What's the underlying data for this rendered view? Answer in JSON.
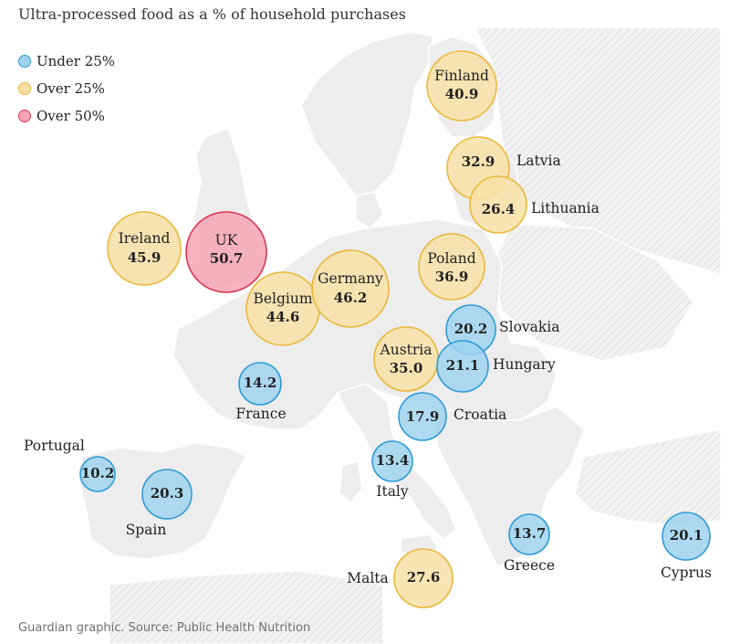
{
  "title": "Ultra-processed food as a % of household purchases",
  "source": "Guardian graphic. Source: Public Health Nutrition",
  "colors": {
    "under25": {
      "fill": "#9fd4ee",
      "stroke": "#2f9bd6"
    },
    "over25": {
      "fill": "#f7e0a6",
      "stroke": "#e9b83a"
    },
    "over50": {
      "fill": "#f4a6b4",
      "stroke": "#dc3652"
    },
    "land": "#ededed",
    "border": "#ffffff"
  },
  "legend": [
    {
      "key": "under25",
      "label": "Under 25%"
    },
    {
      "key": "over25",
      "label": "Over 25%"
    },
    {
      "key": "over50",
      "label": "Over 50%"
    }
  ],
  "countries": [
    {
      "id": "finland",
      "name": "Finland",
      "value": "40.9",
      "category": "over25"
    },
    {
      "id": "latvia",
      "name": "Latvia",
      "value": "32.9",
      "category": "over25"
    },
    {
      "id": "lithuania",
      "name": "Lithuania",
      "value": "26.4",
      "category": "over25"
    },
    {
      "id": "ireland",
      "name": "Ireland",
      "value": "45.9",
      "category": "over25"
    },
    {
      "id": "uk",
      "name": "UK",
      "value": "50.7",
      "category": "over50"
    },
    {
      "id": "poland",
      "name": "Poland",
      "value": "36.9",
      "category": "over25"
    },
    {
      "id": "germany",
      "name": "Germany",
      "value": "46.2",
      "category": "over25"
    },
    {
      "id": "belgium",
      "name": "Belgium",
      "value": "44.6",
      "category": "over25"
    },
    {
      "id": "slovakia",
      "name": "Slovakia",
      "value": "20.2",
      "category": "under25"
    },
    {
      "id": "austria",
      "name": "Austria",
      "value": "35.0",
      "category": "over25"
    },
    {
      "id": "hungary",
      "name": "Hungary",
      "value": "21.1",
      "category": "under25"
    },
    {
      "id": "france",
      "name": "France",
      "value": "14.2",
      "category": "under25"
    },
    {
      "id": "croatia",
      "name": "Croatia",
      "value": "17.9",
      "category": "under25"
    },
    {
      "id": "portugal",
      "name": "Portugal",
      "value": "10.2",
      "category": "under25"
    },
    {
      "id": "italy",
      "name": "Italy",
      "value": "13.4",
      "category": "under25"
    },
    {
      "id": "spain",
      "name": "Spain",
      "value": "20.3",
      "category": "under25"
    },
    {
      "id": "greece",
      "name": "Greece",
      "value": "13.7",
      "category": "under25"
    },
    {
      "id": "cyprus",
      "name": "Cyprus",
      "value": "20.1",
      "category": "under25"
    },
    {
      "id": "malta",
      "name": "Malta",
      "value": "27.6",
      "category": "over25"
    }
  ]
}
